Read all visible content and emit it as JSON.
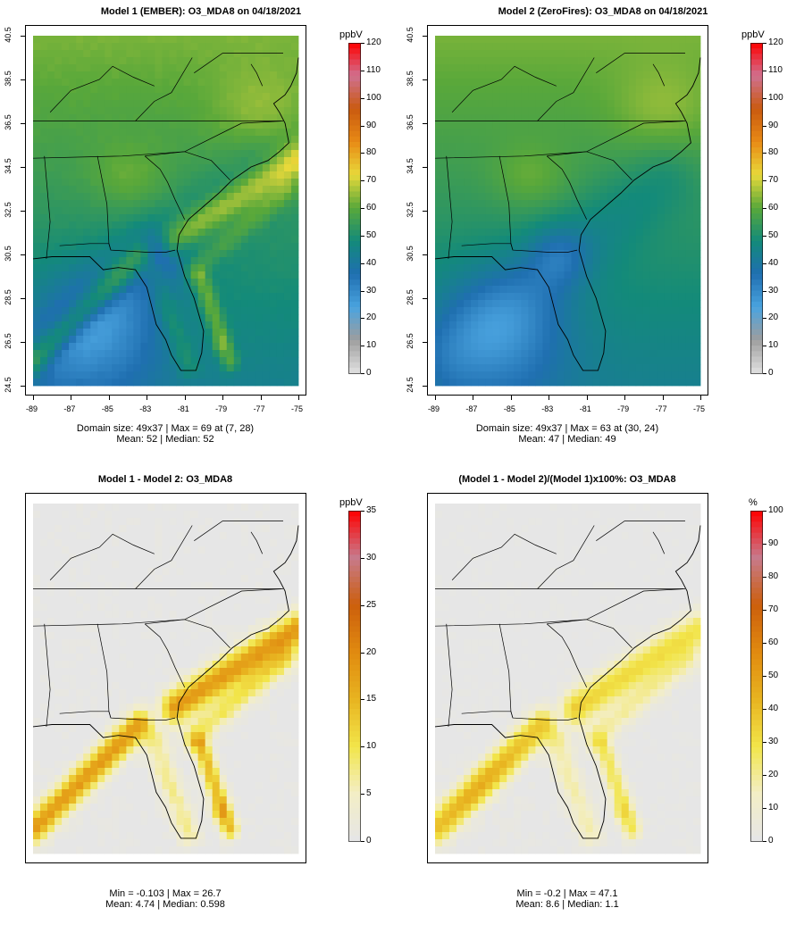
{
  "panels": [
    {
      "title": "Model 1 (EMBER): O3_MDA8 on 04/18/2021",
      "stats": [
        "Domain size: 49x37 | Max = 69 at (7, 28)",
        "Mean: 52 |  Median: 52"
      ],
      "unit": "ppbV",
      "colorbar_ticks": [
        "120",
        "110",
        "100",
        "90",
        "80",
        "70",
        "60",
        "50",
        "40",
        "30",
        "20",
        "10",
        "0"
      ],
      "x_ticks": [
        "-89",
        "-87",
        "-85",
        "-83",
        "-81",
        "-79",
        "-77",
        "-75"
      ],
      "y_ticks": [
        "40.5",
        "38.5",
        "36.5",
        "34.5",
        "32.5",
        "30.5",
        "28.5",
        "26.5",
        "24.5"
      ],
      "palette": "conc",
      "scene": "ember"
    },
    {
      "title": "Model 2 (ZeroFires): O3_MDA8 on 04/18/2021",
      "stats": [
        "Domain size: 49x37 | Max = 63 at (30, 24)",
        "Mean: 47 |  Median: 49"
      ],
      "unit": "ppbV",
      "colorbar_ticks": [
        "120",
        "110",
        "100",
        "90",
        "80",
        "70",
        "60",
        "50",
        "40",
        "30",
        "20",
        "10",
        "0"
      ],
      "x_ticks": [
        "-89",
        "-87",
        "-85",
        "-83",
        "-81",
        "-79",
        "-77",
        "-75"
      ],
      "y_ticks": [
        "40.5",
        "38.5",
        "36.5",
        "34.5",
        "32.5",
        "30.5",
        "28.5",
        "26.5",
        "24.5"
      ],
      "palette": "conc",
      "scene": "zero"
    },
    {
      "title": "Model 1 - Model 2: O3_MDA8",
      "stats": [
        "Min = -0.103 | Max = 26.7",
        "Mean: 4.74 |  Median: 0.598"
      ],
      "unit": "ppbV",
      "colorbar_ticks": [
        "35",
        "30",
        "25",
        "20",
        "15",
        "10",
        "5",
        "0"
      ],
      "x_ticks": [],
      "y_ticks": [],
      "palette": "diff",
      "scene": "diff"
    },
    {
      "title": "(Model 1 - Model 2)/(Model 1)x100%: O3_MDA8",
      "stats": [
        "Min = -0.2 | Max = 47.1",
        "Mean: 8.6 |  Median: 1.1"
      ],
      "unit": "%",
      "colorbar_ticks": [
        "100",
        "90",
        "80",
        "70",
        "60",
        "50",
        "40",
        "30",
        "20",
        "10",
        "0"
      ],
      "x_ticks": [],
      "y_ticks": [],
      "palette": "pct",
      "scene": "pct"
    }
  ],
  "colors": {
    "conc_scale": [
      "#e0e0e0",
      "#9e9e9e",
      "#4aa3df",
      "#1f6fb0",
      "#138a7a",
      "#59a83a",
      "#e8d93a",
      "#e88a15",
      "#c95a10",
      "#d07090",
      "#ff0000"
    ],
    "diff_scale": [
      "#e6e6e6",
      "#f3eec6",
      "#f2e54a",
      "#e8b420",
      "#e08a10",
      "#cc5f0c",
      "#c77a8c",
      "#ff0000"
    ]
  }
}
